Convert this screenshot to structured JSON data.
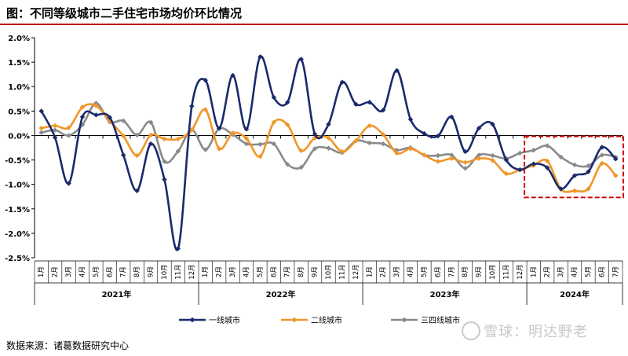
{
  "title": "图：不同等级城市二手住宅市场均价环比情况",
  "source": "数据来源：诸葛数据研究中心",
  "watermark": "雪球：明达野老",
  "colors": {
    "accent_rule": "#c00000",
    "highlight_box": "#d40000",
    "series": [
      "#1b2a6b",
      "#f0962a",
      "#8a8a8a"
    ]
  },
  "chart_data": {
    "type": "line",
    "title": "",
    "xlabel": "",
    "ylabel": "",
    "ylim": [
      -2.5,
      2.0
    ],
    "y_ticks": [
      "2.0%",
      "1.5%",
      "1.0%",
      "0.5%",
      "0.0%",
      "-0.5%",
      "-1.0%",
      "-1.5%",
      "-2.0%",
      "-2.5%"
    ],
    "y_tick_values": [
      2.0,
      1.5,
      1.0,
      0.5,
      0.0,
      -0.5,
      -1.0,
      -1.5,
      -2.0,
      -2.5
    ],
    "categories": [
      "1月",
      "2月",
      "3月",
      "4月",
      "5月",
      "6月",
      "7月",
      "8月",
      "9月",
      "10月",
      "11月",
      "12月",
      "1月",
      "2月",
      "3月",
      "4月",
      "5月",
      "6月",
      "7月",
      "8月",
      "9月",
      "10月",
      "11月",
      "12月",
      "1月",
      "2月",
      "3月",
      "4月",
      "5月",
      "6月",
      "7月",
      "8月",
      "9月",
      "10月",
      "11月",
      "12月",
      "1月",
      "2月",
      "3月",
      "4月",
      "5月",
      "6月",
      "7月"
    ],
    "year_groups": [
      {
        "label": "2021年",
        "start": 0,
        "count": 12
      },
      {
        "label": "2022年",
        "start": 12,
        "count": 12
      },
      {
        "label": "2023年",
        "start": 24,
        "count": 12
      },
      {
        "label": "2024年",
        "start": 36,
        "count": 7
      }
    ],
    "highlight": {
      "start_index": 36,
      "end_index": 42,
      "y_from": 0.0,
      "y_to": -1.25
    },
    "grid": false,
    "legend_position": "bottom",
    "series": [
      {
        "name": "一线城市",
        "color": "#1b2a6b",
        "values": [
          0.5,
          -0.04,
          -0.98,
          0.38,
          0.42,
          0.37,
          -0.4,
          -1.13,
          -0.17,
          -0.9,
          -2.31,
          0.6,
          1.13,
          0.15,
          1.23,
          0.13,
          1.61,
          0.78,
          0.68,
          1.56,
          0.03,
          0.23,
          1.09,
          0.64,
          0.68,
          0.52,
          1.33,
          0.33,
          0.04,
          -0.01,
          0.38,
          -0.33,
          0.15,
          0.23,
          -0.5,
          -0.7,
          -0.58,
          -0.66,
          -1.09,
          -0.82,
          -0.74,
          -0.24,
          -0.48
        ]
      },
      {
        "name": "二线城市",
        "color": "#f0962a",
        "values": [
          0.15,
          0.2,
          0.16,
          0.58,
          0.61,
          0.3,
          -0.01,
          -0.41,
          0.01,
          -0.07,
          -0.07,
          0.11,
          0.53,
          -0.27,
          0.05,
          -0.06,
          -0.43,
          0.27,
          0.22,
          -0.31,
          -0.05,
          -0.05,
          -0.33,
          -0.11,
          0.2,
          0.02,
          -0.36,
          -0.27,
          -0.4,
          -0.53,
          -0.47,
          -0.55,
          -0.47,
          -0.51,
          -0.78,
          -0.7,
          -0.61,
          -0.52,
          -1.1,
          -1.13,
          -1.09,
          -0.57,
          -0.82
        ]
      },
      {
        "name": "三四线城市",
        "color": "#8a8a8a",
        "values": [
          0.06,
          0.11,
          0.0,
          0.22,
          0.66,
          0.28,
          0.3,
          0.01,
          0.27,
          -0.53,
          -0.32,
          0.12,
          -0.29,
          0.14,
          0.02,
          -0.17,
          -0.18,
          -0.17,
          -0.59,
          -0.65,
          -0.27,
          -0.26,
          -0.35,
          -0.11,
          -0.15,
          -0.17,
          -0.3,
          -0.25,
          -0.4,
          -0.41,
          -0.4,
          -0.67,
          -0.4,
          -0.41,
          -0.47,
          -0.36,
          -0.3,
          -0.21,
          -0.44,
          -0.6,
          -0.62,
          -0.4,
          -0.44
        ]
      }
    ]
  }
}
